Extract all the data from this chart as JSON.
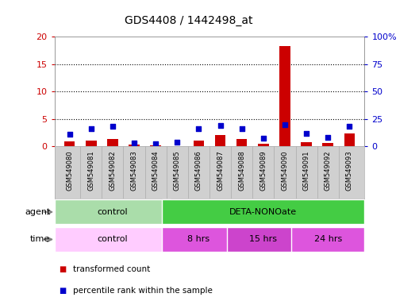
{
  "title": "GDS4408 / 1442498_at",
  "samples": [
    "GSM549080",
    "GSM549081",
    "GSM549082",
    "GSM549083",
    "GSM549084",
    "GSM549085",
    "GSM549086",
    "GSM549087",
    "GSM549088",
    "GSM549089",
    "GSM549090",
    "GSM549091",
    "GSM549092",
    "GSM549093"
  ],
  "transformed_count": [
    0.9,
    1.0,
    1.4,
    0.3,
    0.2,
    0.05,
    1.1,
    2.1,
    1.4,
    0.5,
    18.3,
    0.8,
    0.6,
    2.4
  ],
  "percentile_rank": [
    11.0,
    16.2,
    18.3,
    2.8,
    2.6,
    3.8,
    16.0,
    18.8,
    16.5,
    7.2,
    19.8,
    11.8,
    8.3,
    18.6
  ],
  "left_yaxis": {
    "min": 0,
    "max": 20,
    "ticks": [
      0,
      5,
      10,
      15,
      20
    ],
    "color": "#cc0000"
  },
  "right_yaxis": {
    "min": 0,
    "max": 100,
    "ticks": [
      0,
      25,
      50,
      75,
      100
    ],
    "color": "#0000cc",
    "labels": [
      "0",
      "25",
      "50",
      "75",
      "100%"
    ]
  },
  "bar_color": "#cc0000",
  "dot_color": "#0000cc",
  "agent_row": [
    {
      "label": "control",
      "start": 0,
      "end": 5,
      "color": "#aaddaa"
    },
    {
      "label": "DETA-NONOate",
      "start": 5,
      "end": 14,
      "color": "#44cc44"
    }
  ],
  "time_row": [
    {
      "label": "control",
      "start": 0,
      "end": 5,
      "color": "#ffccff"
    },
    {
      "label": "8 hrs",
      "start": 5,
      "end": 8,
      "color": "#dd55dd"
    },
    {
      "label": "15 hrs",
      "start": 8,
      "end": 11,
      "color": "#cc44cc"
    },
    {
      "label": "24 hrs",
      "start": 11,
      "end": 14,
      "color": "#dd55dd"
    }
  ],
  "legend": [
    {
      "color": "#cc0000",
      "label": "transformed count"
    },
    {
      "color": "#0000cc",
      "label": "percentile rank within the sample"
    }
  ],
  "grid_lines": [
    5,
    10,
    15
  ],
  "sample_bg": "#d0d0d0",
  "sample_border": "#aaaaaa"
}
